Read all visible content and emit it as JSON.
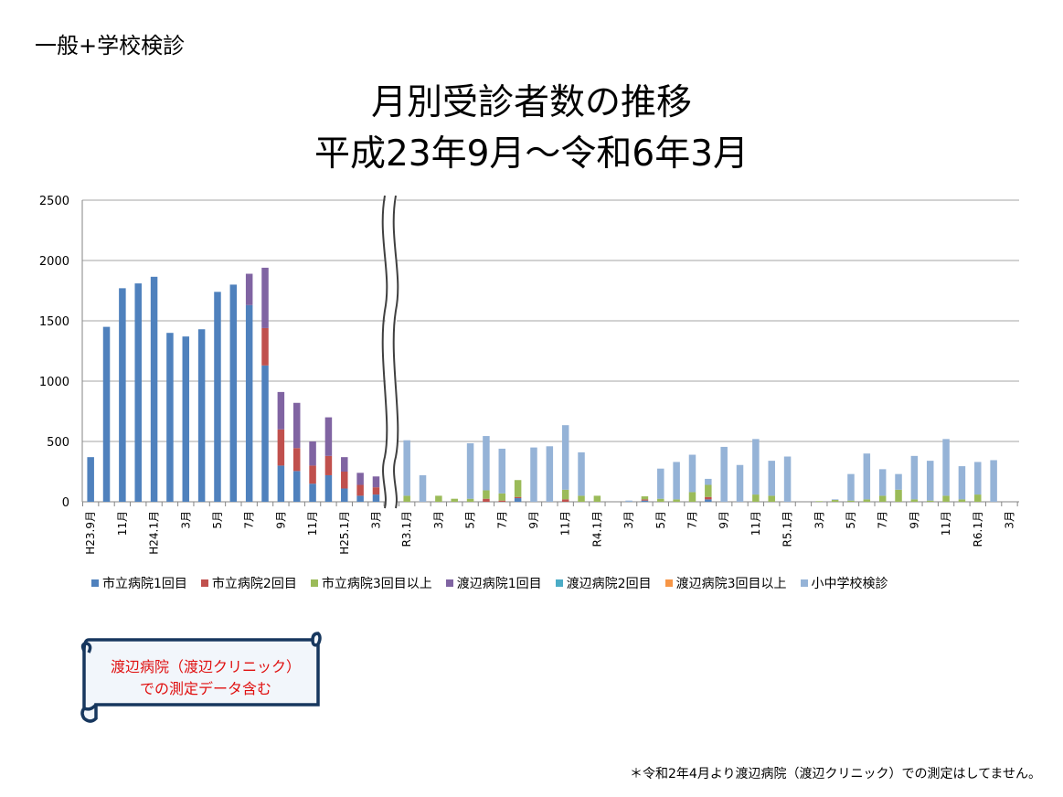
{
  "page": {
    "corner_title": "一般+学校検診",
    "title_line1": "月別受診者数の推移",
    "title_line2": "平成23年9月～令和6年3月",
    "note_line1": "渡辺病院（渡辺クリニック）",
    "note_line2": "での測定データ含む",
    "footnote": "＊令和2年4月より渡辺病院（渡辺クリニック）での測定はしてません。"
  },
  "chart_data": {
    "type": "bar",
    "stacked": true,
    "ylim": [
      0,
      2500
    ],
    "y_ticks": [
      0,
      500,
      1000,
      1500,
      2000,
      2500
    ],
    "grid": true,
    "legend_position": "bottom",
    "axis_break": "between H25.3 and R3.1",
    "series": [
      {
        "name": "市立病院1回目",
        "color": "#4F81BD"
      },
      {
        "name": "市立病院2回目",
        "color": "#C0504D"
      },
      {
        "name": "市立病院3回目以上",
        "color": "#9BBB59"
      },
      {
        "name": "渡辺病院1回目",
        "color": "#8064A2"
      },
      {
        "name": "渡辺病院2回目",
        "color": "#4BACC6"
      },
      {
        "name": "渡辺病院3回目以上",
        "color": "#F79646"
      },
      {
        "name": "小中学校検診",
        "color": "#95B3D7"
      }
    ],
    "segments": [
      {
        "categories": [
          "H23.9月",
          "10",
          "11月",
          "12",
          "H24.1月",
          "2",
          "3月",
          "4",
          "5月",
          "6",
          "7月",
          "8",
          "9月",
          "10",
          "11月",
          "12",
          "H25.1月",
          "2",
          "3月"
        ],
        "tick_labels": [
          "H23.9月",
          "",
          "11月",
          "",
          "H24.1月",
          "",
          "3月",
          "",
          "5月",
          "",
          "7月",
          "",
          "9月",
          "",
          "11月",
          "",
          "H25.1月",
          "",
          "3月"
        ],
        "values": [
          [
            370,
            0,
            0,
            0,
            0,
            0,
            0
          ],
          [
            1450,
            0,
            0,
            0,
            0,
            0,
            0
          ],
          [
            1770,
            0,
            0,
            0,
            0,
            0,
            0
          ],
          [
            1810,
            0,
            0,
            0,
            0,
            0,
            0
          ],
          [
            1865,
            0,
            0,
            0,
            0,
            0,
            0
          ],
          [
            1400,
            0,
            0,
            0,
            0,
            0,
            0
          ],
          [
            1370,
            0,
            0,
            0,
            0,
            0,
            0
          ],
          [
            1430,
            0,
            0,
            0,
            0,
            0,
            0
          ],
          [
            1740,
            0,
            0,
            0,
            0,
            0,
            0
          ],
          [
            1800,
            0,
            0,
            0,
            0,
            0,
            0
          ],
          [
            1630,
            0,
            0,
            260,
            0,
            0,
            0
          ],
          [
            1130,
            310,
            0,
            500,
            0,
            0,
            0
          ],
          [
            300,
            300,
            0,
            310,
            0,
            0,
            0
          ],
          [
            255,
            190,
            0,
            375,
            0,
            0,
            0
          ],
          [
            150,
            150,
            0,
            200,
            0,
            0,
            0
          ],
          [
            220,
            160,
            0,
            320,
            0,
            0,
            0
          ],
          [
            110,
            140,
            0,
            120,
            0,
            0,
            0
          ],
          [
            50,
            90,
            0,
            100,
            0,
            0,
            0
          ],
          [
            60,
            60,
            0,
            90,
            0,
            0,
            0
          ]
        ]
      },
      {
        "categories": [
          "R3.1月",
          "2",
          "3月",
          "4",
          "5月",
          "6",
          "7月",
          "8",
          "9月",
          "10",
          "11月",
          "12",
          "R4.1月",
          "2",
          "3月",
          "4",
          "5月",
          "6",
          "7月",
          "8",
          "9月",
          "10",
          "11月",
          "12",
          "R5.1月",
          "2",
          "3月",
          "4",
          "5月",
          "6",
          "7月",
          "8",
          "9月",
          "10",
          "11月",
          "12",
          "R6.1月",
          "2",
          "3月"
        ],
        "tick_labels": [
          "R3.1月",
          "",
          "3月",
          "",
          "5月",
          "",
          "7月",
          "",
          "9月",
          "",
          "11月",
          "",
          "R4.1月",
          "",
          "3月",
          "",
          "5月",
          "",
          "7月",
          "",
          "9月",
          "",
          "11月",
          "",
          "R5.1月",
          "",
          "3月",
          "",
          "5月",
          "",
          "7月",
          "",
          "9月",
          "",
          "11月",
          "",
          "R6.1月",
          "",
          "3月"
        ],
        "values": [
          [
            0,
            0,
            50,
            0,
            0,
            0,
            460
          ],
          [
            0,
            0,
            0,
            0,
            0,
            0,
            220
          ],
          [
            0,
            0,
            50,
            0,
            0,
            0,
            0
          ],
          [
            0,
            0,
            25,
            0,
            0,
            0,
            0
          ],
          [
            0,
            0,
            25,
            0,
            0,
            0,
            460
          ],
          [
            0,
            25,
            70,
            0,
            0,
            0,
            450
          ],
          [
            0,
            10,
            60,
            0,
            0,
            0,
            370
          ],
          [
            30,
            10,
            140,
            0,
            0,
            0,
            0
          ],
          [
            0,
            0,
            0,
            0,
            0,
            0,
            450
          ],
          [
            0,
            0,
            0,
            0,
            0,
            0,
            460
          ],
          [
            0,
            20,
            80,
            0,
            0,
            0,
            535
          ],
          [
            0,
            0,
            50,
            0,
            0,
            0,
            360
          ],
          [
            0,
            0,
            50,
            0,
            0,
            0,
            0
          ],
          [
            0,
            0,
            0,
            0,
            0,
            0,
            0
          ],
          [
            0,
            0,
            0,
            0,
            0,
            0,
            10
          ],
          [
            10,
            10,
            25,
            0,
            0,
            0,
            0
          ],
          [
            0,
            0,
            25,
            0,
            0,
            0,
            250
          ],
          [
            0,
            0,
            20,
            0,
            0,
            0,
            310
          ],
          [
            0,
            0,
            80,
            0,
            0,
            0,
            310
          ],
          [
            20,
            20,
            100,
            0,
            0,
            0,
            50
          ],
          [
            0,
            0,
            0,
            0,
            0,
            0,
            455
          ],
          [
            0,
            0,
            0,
            0,
            0,
            0,
            305
          ],
          [
            0,
            0,
            60,
            0,
            0,
            0,
            460
          ],
          [
            0,
            0,
            50,
            0,
            0,
            0,
            290
          ],
          [
            0,
            0,
            0,
            0,
            0,
            0,
            375
          ],
          [
            0,
            0,
            0,
            0,
            0,
            0,
            0
          ],
          [
            0,
            0,
            5,
            0,
            0,
            0,
            0
          ],
          [
            0,
            0,
            15,
            0,
            0,
            0,
            5
          ],
          [
            0,
            0,
            10,
            0,
            0,
            0,
            220
          ],
          [
            0,
            0,
            20,
            0,
            0,
            0,
            380
          ],
          [
            0,
            0,
            50,
            0,
            0,
            0,
            220
          ],
          [
            0,
            0,
            100,
            0,
            0,
            0,
            130
          ],
          [
            0,
            0,
            20,
            0,
            0,
            0,
            360
          ],
          [
            0,
            0,
            10,
            0,
            0,
            0,
            330
          ],
          [
            0,
            0,
            50,
            0,
            0,
            0,
            470
          ],
          [
            0,
            0,
            20,
            0,
            0,
            0,
            275
          ],
          [
            0,
            0,
            60,
            0,
            0,
            0,
            270
          ],
          [
            0,
            0,
            0,
            0,
            0,
            0,
            345
          ],
          [
            0,
            0,
            0,
            0,
            0,
            0,
            0
          ]
        ]
      }
    ]
  }
}
